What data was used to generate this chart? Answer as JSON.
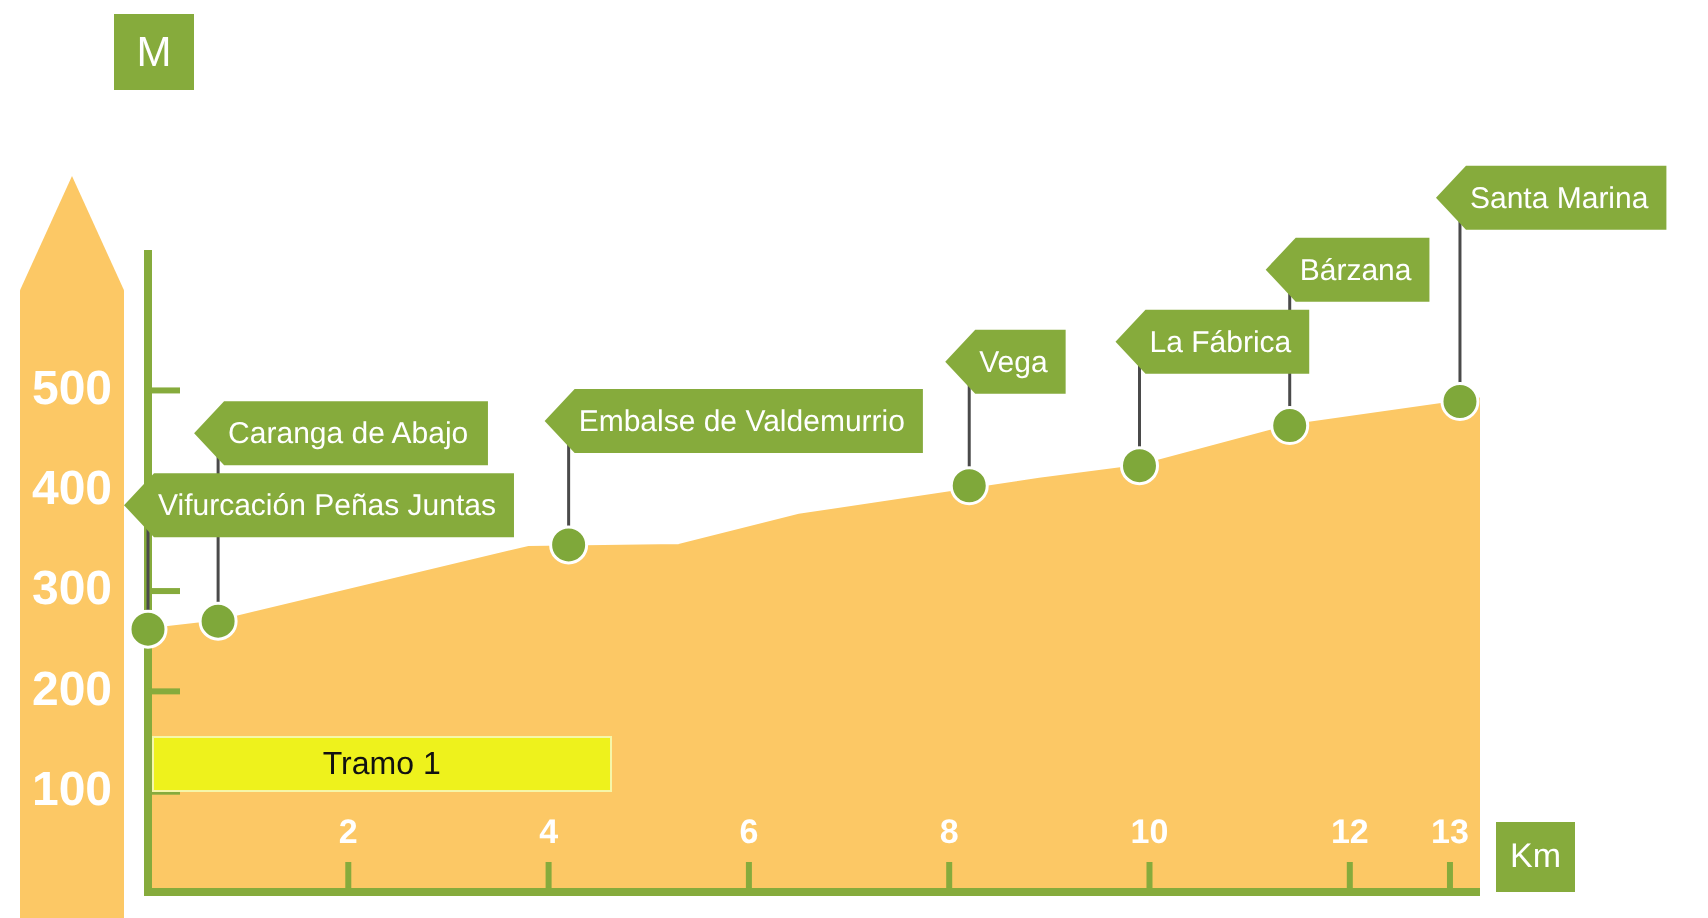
{
  "chart_data": {
    "type": "area",
    "xlabel": "Km",
    "ylabel": "M",
    "xlim": [
      0,
      13.3
    ],
    "xticks": [
      2,
      4,
      6,
      8,
      10,
      12,
      13
    ],
    "ylim": [
      0,
      640
    ],
    "yticks": [
      100,
      200,
      300,
      400,
      500
    ],
    "series": [
      {
        "type": "area",
        "color": "#fcc865",
        "x": [
          0,
          0.7,
          3.8,
          5.3,
          6.5,
          8.9,
          9.9,
          11.4,
          13.3
        ],
        "values": [
          262,
          270,
          344,
          346,
          376,
          412,
          425,
          465,
          492
        ]
      },
      {
        "type": "scatter",
        "color": "#7fa83a",
        "marker": "circle",
        "x": [
          0,
          0.7,
          4.2,
          8.2,
          9.9,
          11.4,
          13.1
        ],
        "values": [
          262,
          270,
          346,
          405,
          425,
          465,
          489
        ]
      }
    ],
    "annotations": [
      {
        "text": "Vifurcación Peñas Juntas",
        "x": 0,
        "y": 262
      },
      {
        "text": "Caranga de Abajo",
        "x": 0.7,
        "y": 270
      },
      {
        "text": "Embalse de Valdemurrio",
        "x": 4.2,
        "y": 346
      },
      {
        "text": "Vega",
        "x": 8.2,
        "y": 405
      },
      {
        "text": "La Fábrica",
        "x": 9.9,
        "y": 425
      },
      {
        "text": "Bárzana",
        "x": 11.4,
        "y": 465
      },
      {
        "text": "Santa Marina",
        "x": 13.1,
        "y": 489
      },
      "Tramo 1"
    ]
  }
}
